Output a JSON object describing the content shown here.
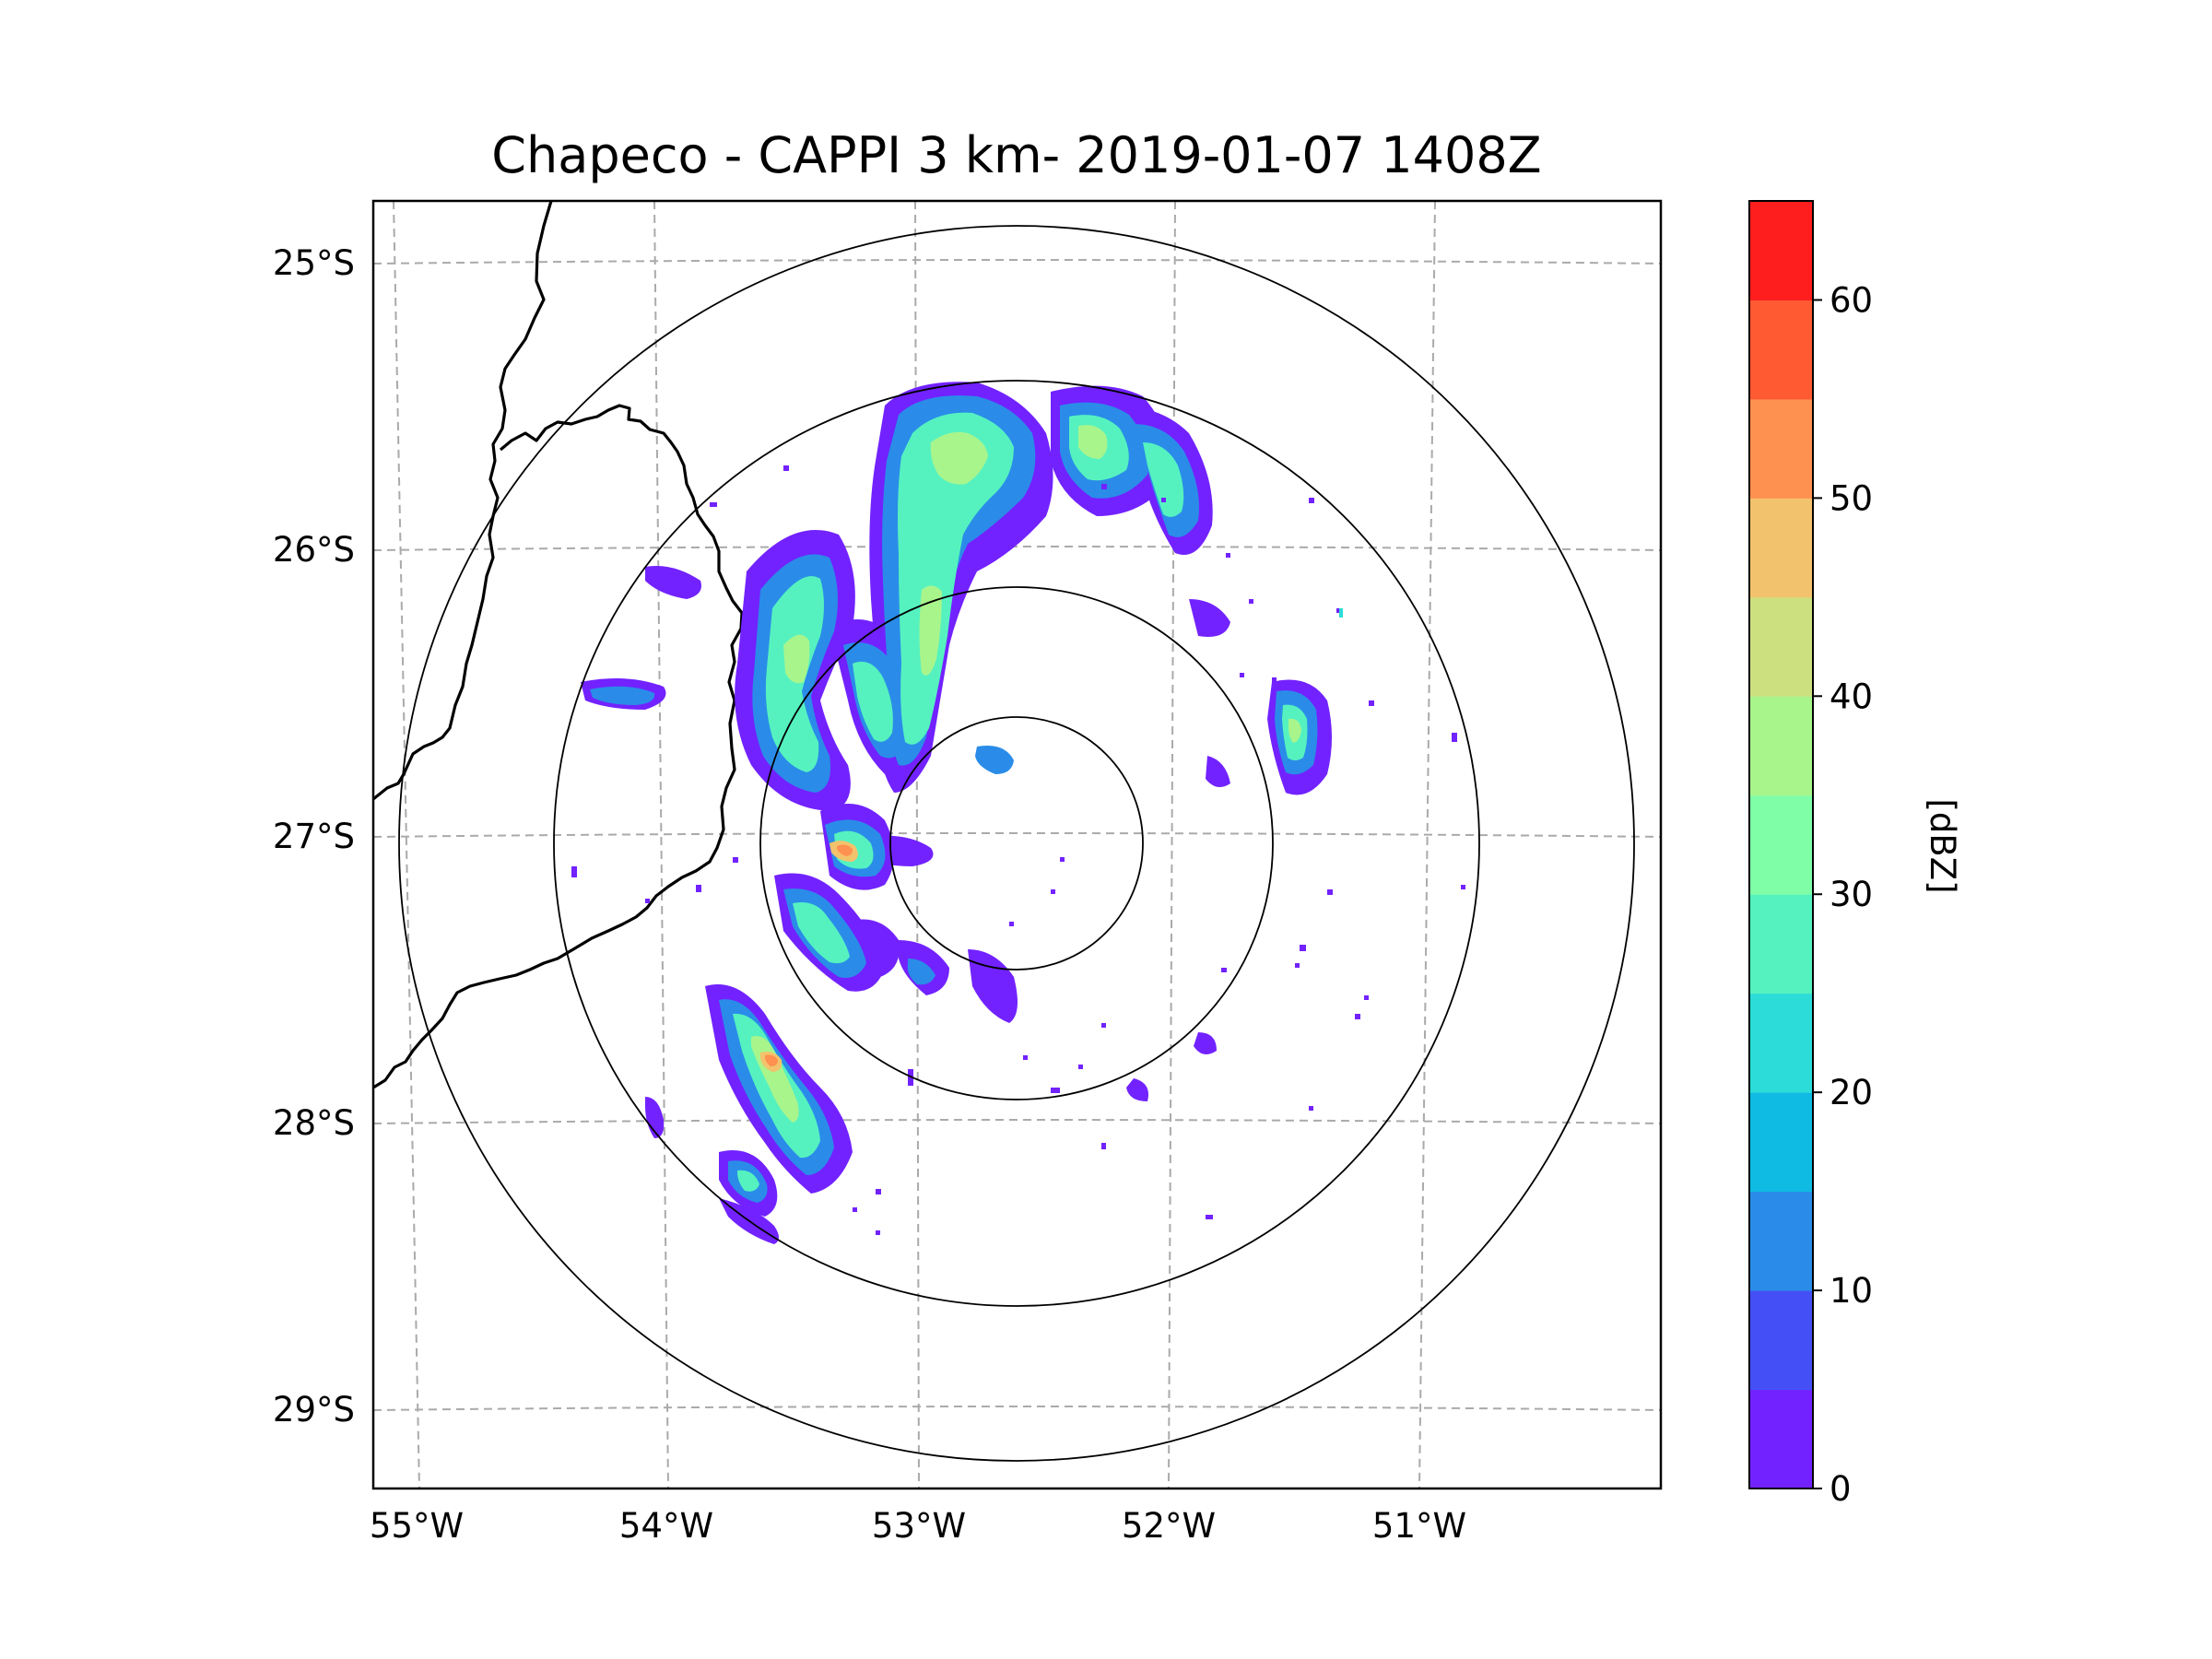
{
  "chart_data": {
    "type": "map",
    "title": "Chapeco - CAPPI 3 km- 2019-01-07 1408Z",
    "x_tick_labels": [
      "55°W",
      "54°W",
      "53°W",
      "52°W",
      "51°W"
    ],
    "y_tick_labels": [
      "25°S",
      "26°S",
      "27°S",
      "28°S",
      "29°S"
    ],
    "lon_range": [
      -55.2,
      -50.2
    ],
    "lat_range": [
      -29.3,
      -24.8
    ],
    "gridlines": true,
    "radar_center": {
      "lon": -52.6,
      "lat": -27.02
    },
    "range_ring_count": 4,
    "colorbar": {
      "label": "[dBZ]",
      "vmin": 0,
      "vmax": 65,
      "ticks": [
        "0",
        "10",
        "20",
        "30",
        "40",
        "50",
        "60"
      ],
      "levels": [
        0,
        5,
        10,
        15,
        20,
        25,
        30,
        35,
        40,
        45,
        50,
        55,
        60,
        65
      ],
      "colors": [
        "#7222ff",
        "#4450f5",
        "#2a8ce8",
        "#0fbbe3",
        "#2cdcd8",
        "#55f2c0",
        "#80fda7",
        "#a8f58c",
        "#cde080",
        "#f3c26c",
        "#ff9150",
        "#ff5a32",
        "#fe1e1e"
      ]
    },
    "echo_cells": [
      {
        "lon": -52.85,
        "lat": -25.7,
        "max_dbz": 38
      },
      {
        "lon": -52.45,
        "lat": -25.55,
        "max_dbz": 35
      },
      {
        "lon": -52.0,
        "lat": -25.75,
        "max_dbz": 38
      },
      {
        "lon": -53.4,
        "lat": -26.5,
        "max_dbz": 32
      },
      {
        "lon": -52.95,
        "lat": -26.55,
        "max_dbz": 33
      },
      {
        "lon": -53.3,
        "lat": -27.1,
        "max_dbz": 46
      },
      {
        "lon": -53.55,
        "lat": -27.8,
        "max_dbz": 47
      },
      {
        "lon": -53.4,
        "lat": -28.1,
        "max_dbz": 33
      },
      {
        "lon": -53.2,
        "lat": -27.3,
        "max_dbz": 30
      },
      {
        "lon": -53.65,
        "lat": -28.2,
        "max_dbz": 28
      }
    ]
  }
}
